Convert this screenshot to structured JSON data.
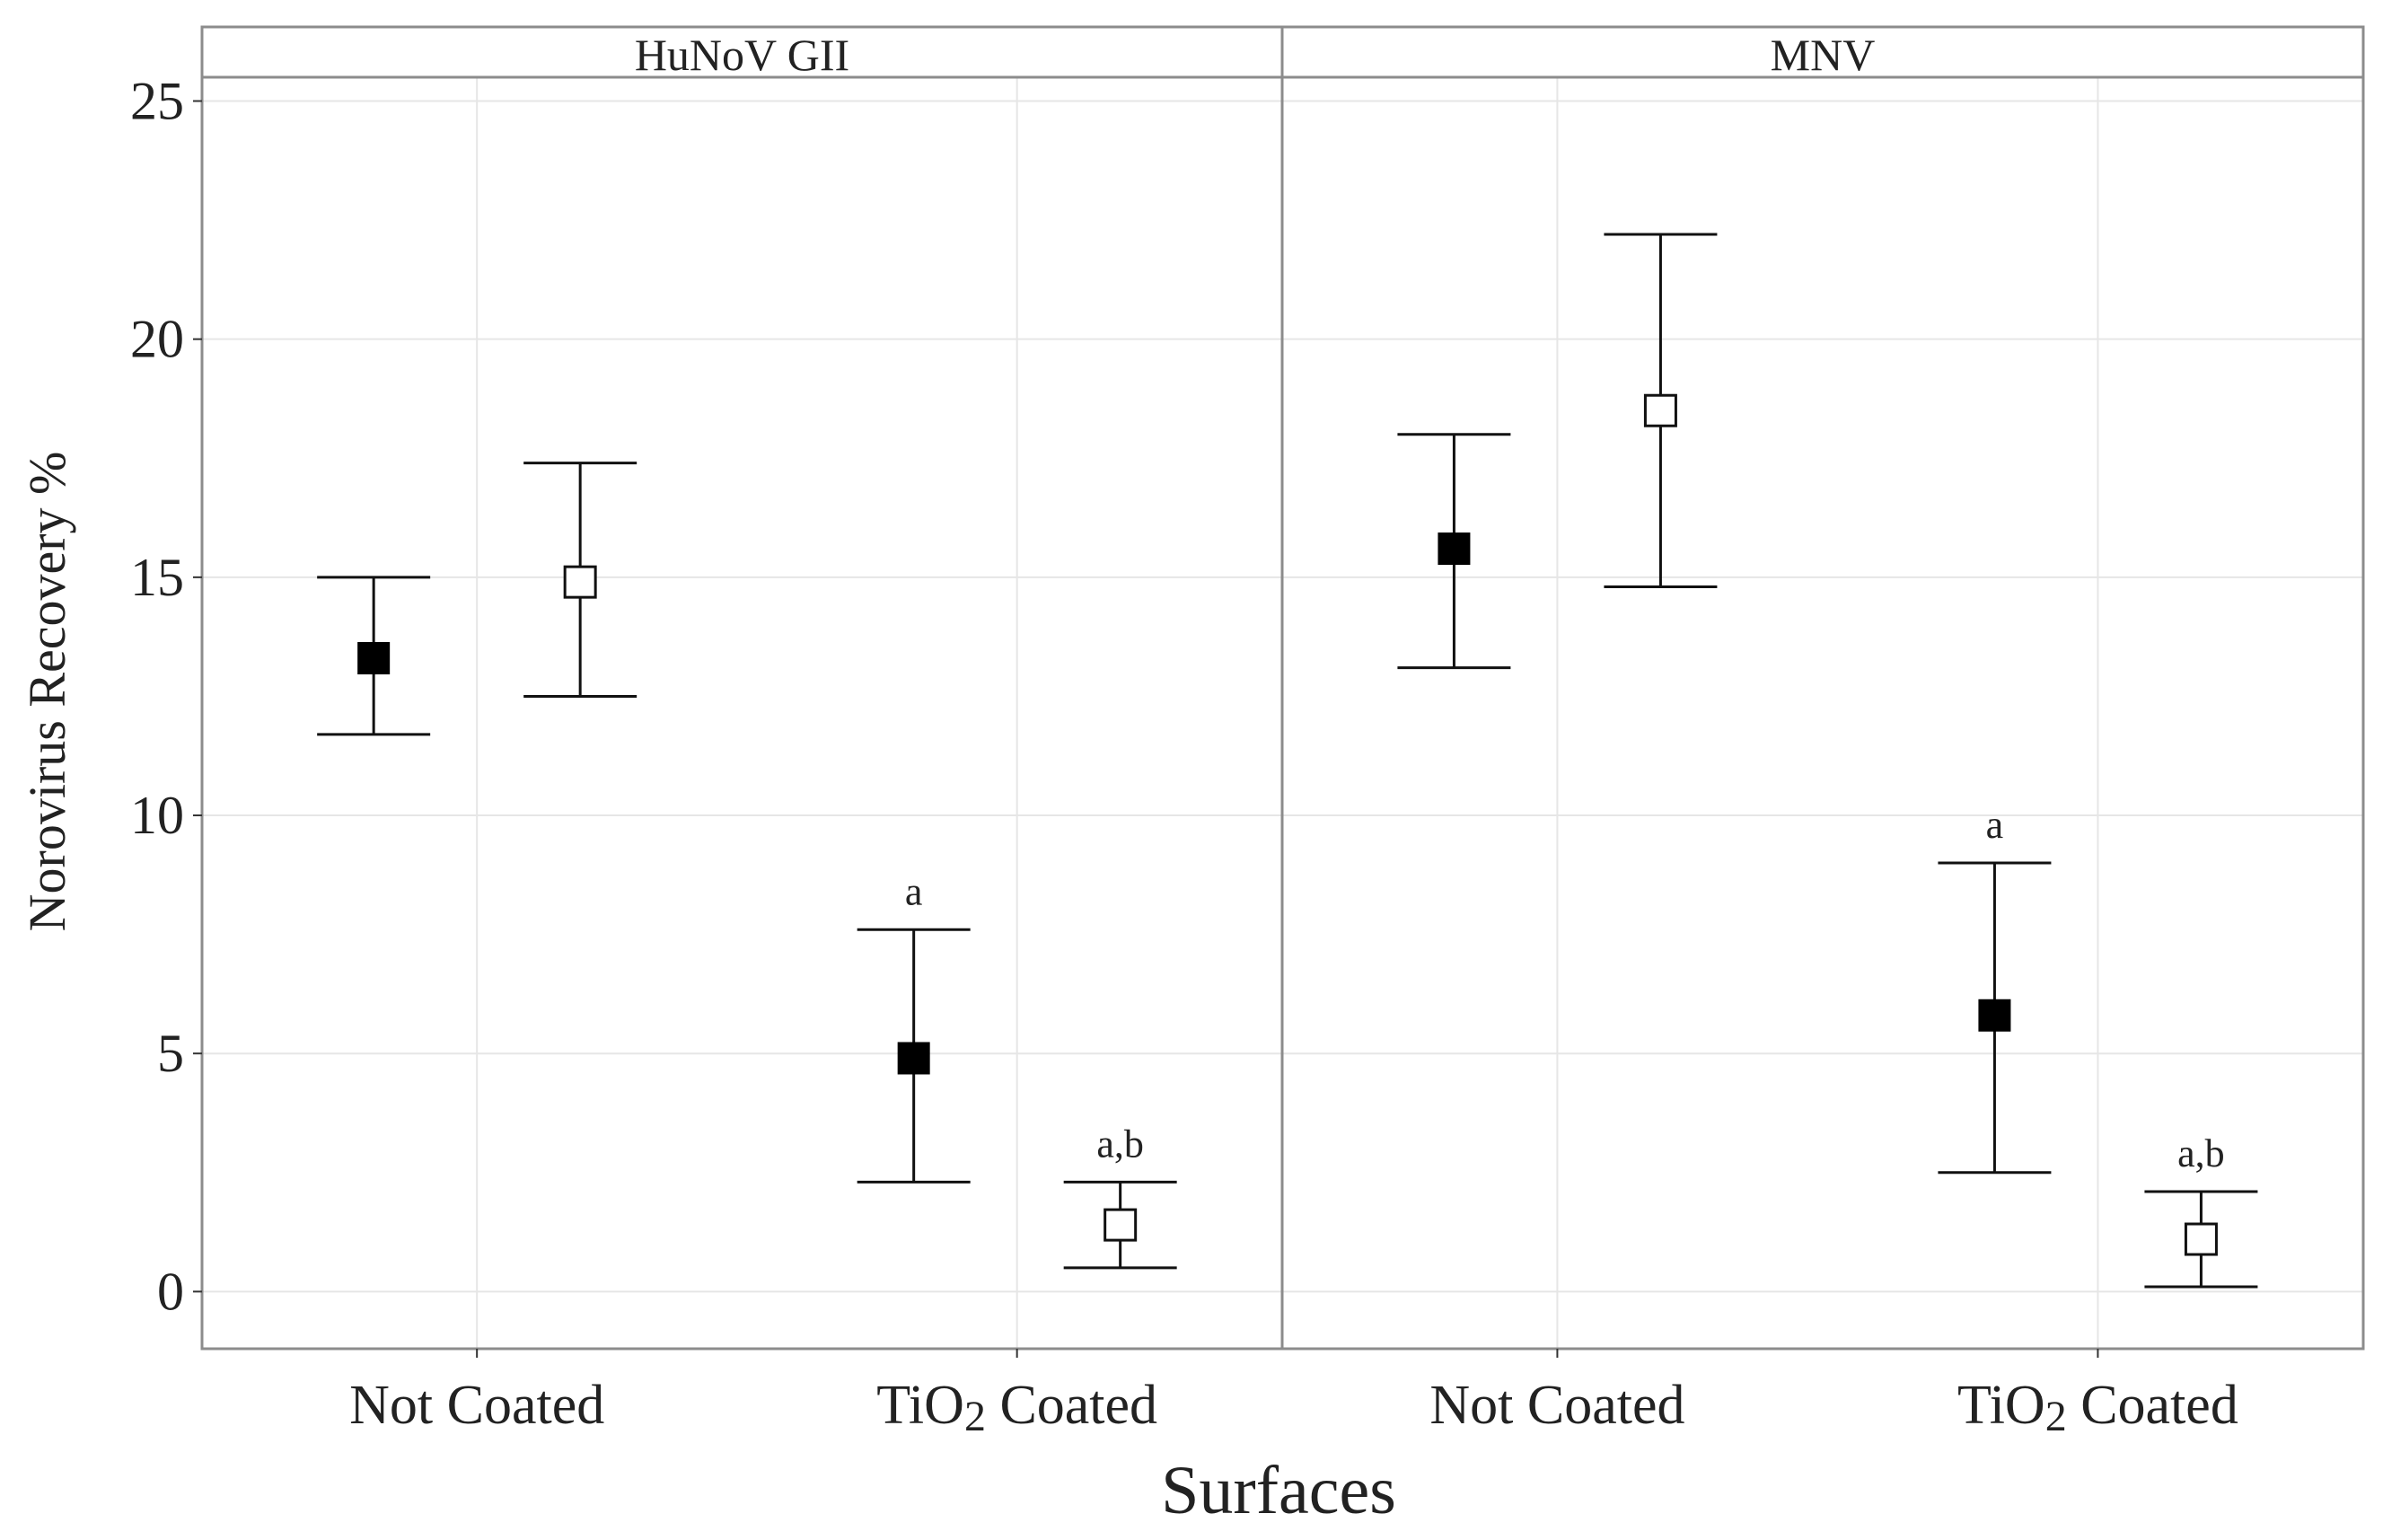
{
  "chart_data": {
    "type": "scatter",
    "ylabel": "Norovirus Recovery %",
    "xlabel": "Surfaces",
    "ylim": [
      -1.2,
      25.5
    ],
    "yticks": [
      0,
      5,
      10,
      15,
      20,
      25
    ],
    "categories": [
      "Not Coated",
      "TiO2 Coated"
    ],
    "category_labels": [
      {
        "main": "Not Coated",
        "sub": ""
      },
      {
        "main": "TiO",
        "sub": "2",
        "rest": " Coated"
      }
    ],
    "series": [
      {
        "name": "filled",
        "marker": "filled-square"
      },
      {
        "name": "open",
        "marker": "open-square"
      }
    ],
    "panels": [
      {
        "title": "HuNoV GII",
        "points": [
          {
            "category": 0,
            "series": 0,
            "mean": 13.3,
            "lower": 11.7,
            "upper": 15.0,
            "label": ""
          },
          {
            "category": 0,
            "series": 1,
            "mean": 14.9,
            "lower": 12.5,
            "upper": 17.4,
            "label": ""
          },
          {
            "category": 1,
            "series": 0,
            "mean": 4.9,
            "lower": 2.3,
            "upper": 7.6,
            "label": "a"
          },
          {
            "category": 1,
            "series": 1,
            "mean": 1.4,
            "lower": 0.5,
            "upper": 2.3,
            "label": "a,b"
          }
        ]
      },
      {
        "title": "MNV",
        "points": [
          {
            "category": 0,
            "series": 0,
            "mean": 15.6,
            "lower": 13.1,
            "upper": 18.0,
            "label": ""
          },
          {
            "category": 0,
            "series": 1,
            "mean": 18.5,
            "lower": 14.8,
            "upper": 22.2,
            "label": ""
          },
          {
            "category": 1,
            "series": 0,
            "mean": 5.8,
            "lower": 2.5,
            "upper": 9.0,
            "label": "a"
          },
          {
            "category": 1,
            "series": 1,
            "mean": 1.1,
            "lower": 0.1,
            "upper": 2.1,
            "label": "a,b"
          }
        ]
      }
    ]
  }
}
